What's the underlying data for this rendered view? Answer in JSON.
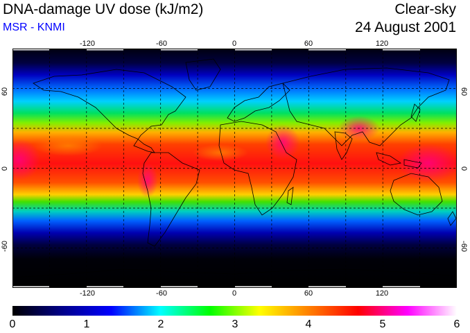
{
  "header": {
    "title": "DNA-damage UV dose (kJ/m2)",
    "subtitle": "MSR - KNMI",
    "condition": "Clear-sky",
    "date": "24 August 2001"
  },
  "map": {
    "lon_ticks": [
      "-120",
      "-60",
      "0",
      "60",
      "120"
    ],
    "lat_ticks": [
      "60",
      "0",
      "-60"
    ],
    "lon_range": [
      -180,
      180
    ],
    "lat_range": [
      -90,
      90
    ],
    "gridlines": "dashed every 30 degrees",
    "colors": {
      "polar_night": "#000000",
      "low": "#000080",
      "mid_low": "#00c8ff",
      "mid": "#00e000",
      "mid_high": "#ffd000",
      "high": "#ff0000",
      "very_high": "#ff00aa"
    }
  },
  "colorbar": {
    "labels": [
      "0",
      "1",
      "2",
      "3",
      "4",
      "5",
      "6"
    ],
    "range": [
      0,
      6
    ],
    "stops": [
      "#000000",
      "#000088",
      "#0000ff",
      "#00ffff",
      "#00ff00",
      "#ffff00",
      "#ff8000",
      "#ff0000",
      "#ff00ff",
      "#ffffff"
    ]
  }
}
